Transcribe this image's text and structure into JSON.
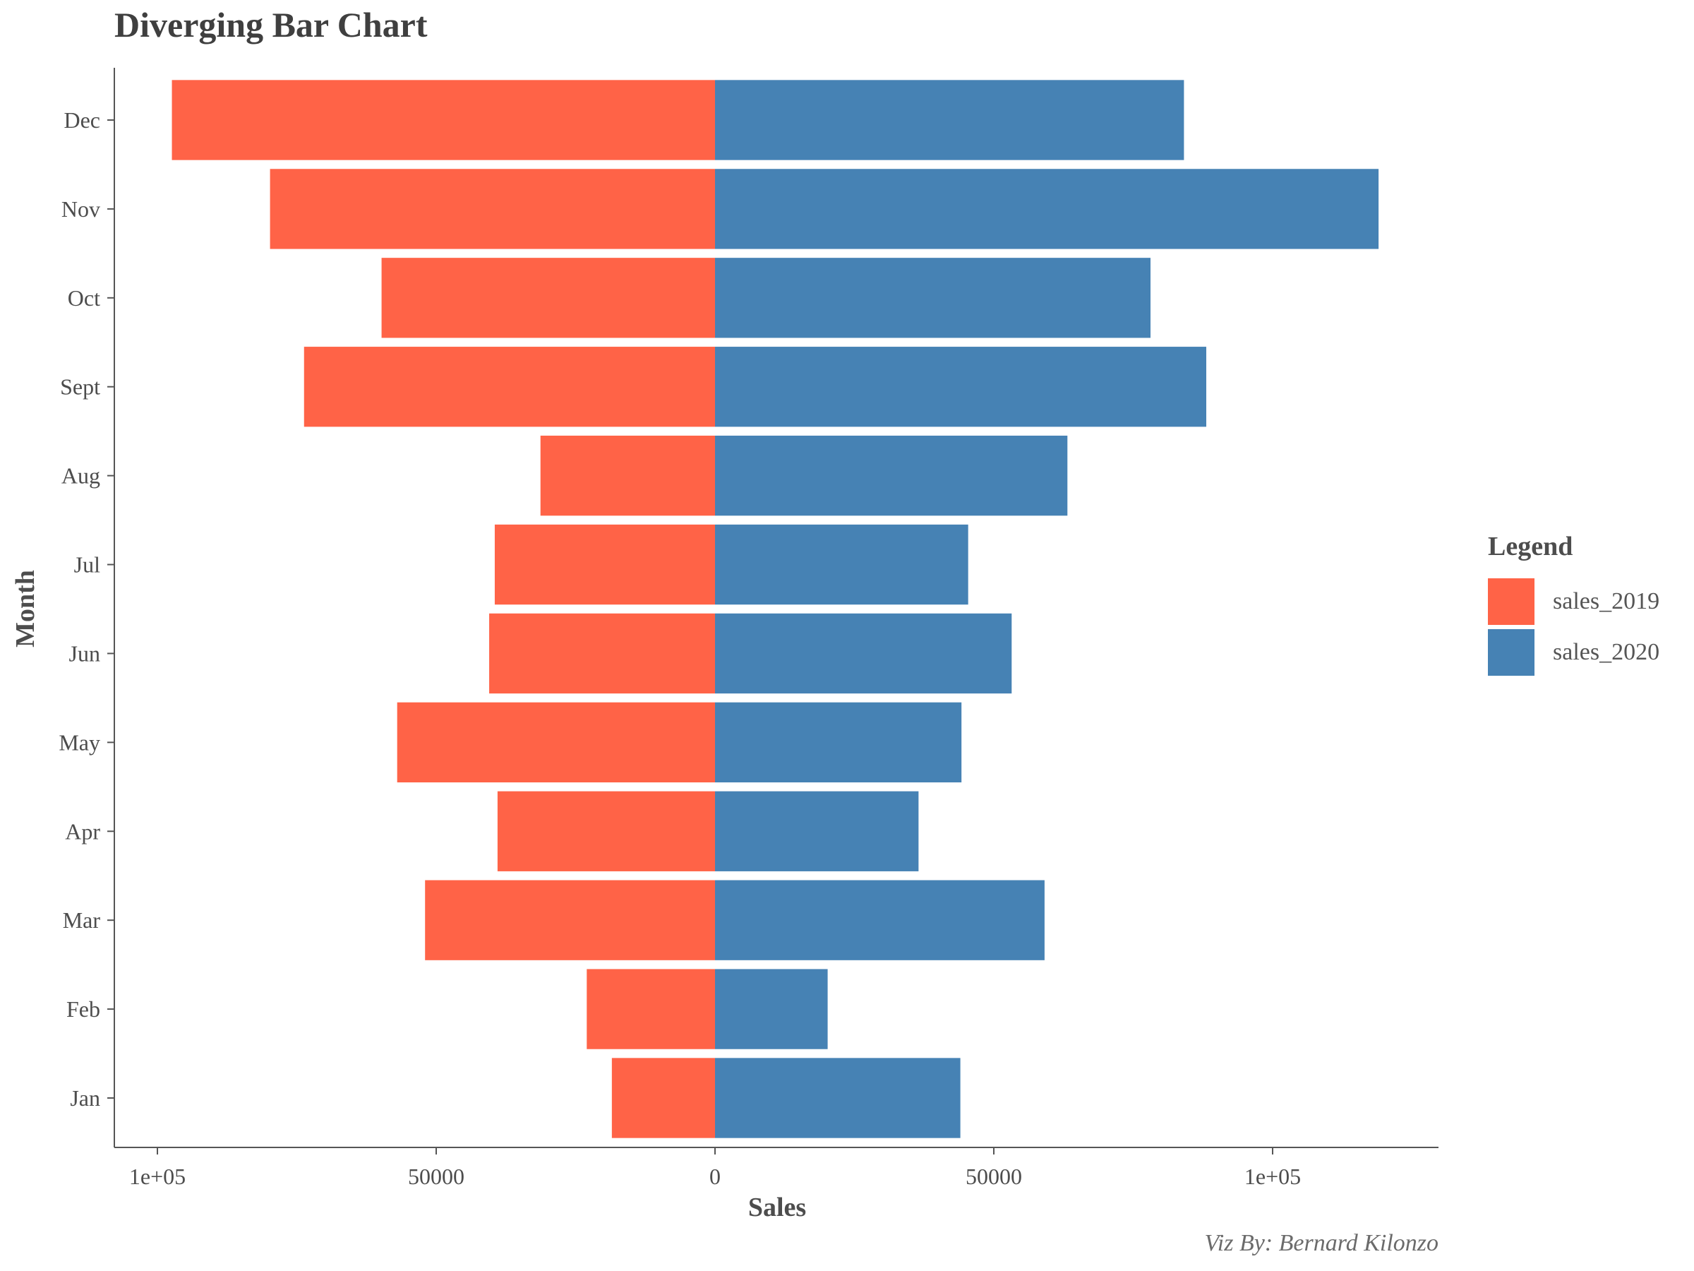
{
  "chart_data": {
    "type": "bar",
    "orientation": "horizontal-diverging",
    "title": "Diverging Bar Chart",
    "xlabel": "Sales",
    "ylabel": "Month",
    "caption": "Viz By: Bernard Kilonzo",
    "legend_title": "Legend",
    "legend_position": "right",
    "grid": false,
    "categories": [
      "Jan",
      "Feb",
      "Mar",
      "Apr",
      "May",
      "Jun",
      "Jul",
      "Aug",
      "Sept",
      "Oct",
      "Nov",
      "Dec"
    ],
    "series": [
      {
        "name": "sales_2019",
        "color": "#FF6347",
        "values": [
          18500,
          23000,
          52000,
          39000,
          57000,
          40500,
          39500,
          31300,
          73700,
          59800,
          79800,
          97400
        ]
      },
      {
        "name": "sales_2020",
        "color": "#4682B4",
        "values": [
          44000,
          20200,
          59100,
          36500,
          44200,
          53200,
          45400,
          63200,
          88100,
          78100,
          119000,
          84100
        ]
      }
    ],
    "xlim": [
      -105000,
      130000
    ],
    "xticks": [
      -100000,
      -50000,
      0,
      50000,
      100000
    ],
    "xtick_labels": [
      "1e+05",
      "50000",
      "0",
      "50000",
      "1e+05"
    ]
  }
}
